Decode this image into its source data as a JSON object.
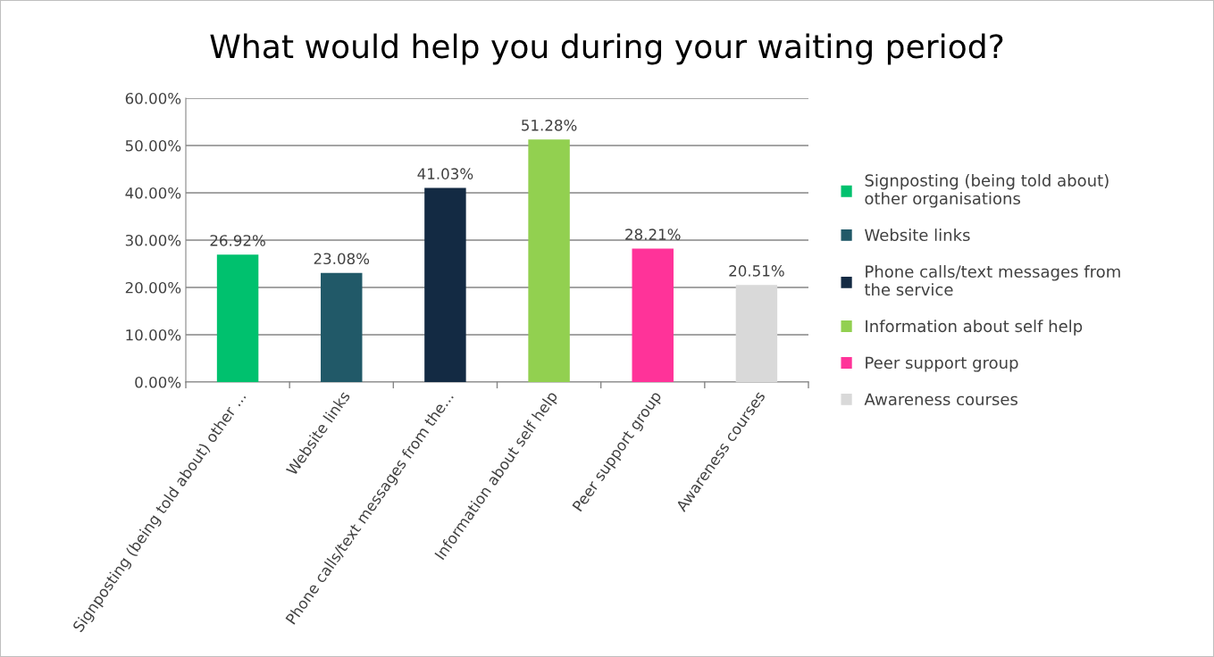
{
  "chart_data": {
    "type": "bar",
    "title": "What would help you during your waiting period?",
    "categories": [
      "Signposting (being told about) other ...",
      "Website links",
      "Phone calls/text messages from the...",
      "Information about self help",
      "Peer support group",
      "Awareness courses"
    ],
    "series": [
      {
        "name": "Signposting (being told about) other organisations",
        "color": "#00c16e",
        "values": [
          26.92,
          null,
          null,
          null,
          null,
          null
        ],
        "value_labels": [
          "26.92%",
          null,
          null,
          null,
          null,
          null
        ]
      },
      {
        "name": "Website links",
        "color": "#215968",
        "values": [
          null,
          23.08,
          null,
          null,
          null,
          null
        ],
        "value_labels": [
          null,
          "23.08%",
          null,
          null,
          null,
          null
        ]
      },
      {
        "name": "Phone calls/text messages from the service",
        "color": "#132a43",
        "values": [
          null,
          null,
          41.03,
          null,
          null,
          null
        ],
        "value_labels": [
          null,
          null,
          "41.03%",
          null,
          null,
          null
        ]
      },
      {
        "name": "Information about self help",
        "color": "#92d050",
        "values": [
          null,
          null,
          null,
          51.28,
          null,
          null
        ],
        "value_labels": [
          null,
          null,
          null,
          "51.28%",
          null,
          null
        ]
      },
      {
        "name": "Peer support group",
        "color": "#ff3399",
        "values": [
          null,
          null,
          null,
          null,
          28.21,
          null
        ],
        "value_labels": [
          null,
          null,
          null,
          null,
          "28.21%",
          null
        ]
      },
      {
        "name": "Awareness courses",
        "color": "#d9d9d9",
        "values": [
          null,
          null,
          null,
          null,
          null,
          20.51
        ],
        "value_labels": [
          null,
          null,
          null,
          null,
          null,
          "20.51%"
        ]
      }
    ],
    "ylim": [
      0,
      60
    ],
    "yticks": [
      {
        "value": 0,
        "label": "0.00%"
      },
      {
        "value": 10,
        "label": "10.00%"
      },
      {
        "value": 20,
        "label": "20.00%"
      },
      {
        "value": 30,
        "label": "30.00%"
      },
      {
        "value": 40,
        "label": "40.00%"
      },
      {
        "value": 50,
        "label": "50.00%"
      },
      {
        "value": 60,
        "label": "60.00%"
      }
    ],
    "grid": "y",
    "legend": "right"
  }
}
